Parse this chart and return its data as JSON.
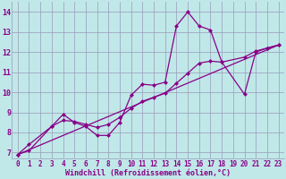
{
  "bg_color": "#c0e8e8",
  "line_color": "#880088",
  "grid_color": "#9999bb",
  "font_color": "#880088",
  "xlabel": "Windchill (Refroidissement éolien,°C)",
  "xlim": [
    -0.5,
    23.5
  ],
  "ylim": [
    6.7,
    14.5
  ],
  "xticks": [
    0,
    1,
    2,
    3,
    4,
    5,
    6,
    7,
    8,
    9,
    10,
    11,
    12,
    13,
    14,
    15,
    16,
    17,
    18,
    19,
    20,
    21,
    22,
    23
  ],
  "yticks": [
    7,
    8,
    9,
    10,
    11,
    12,
    13,
    14
  ],
  "line1_x": [
    0,
    1,
    3,
    4,
    5,
    6,
    7,
    8,
    9,
    10,
    11,
    12,
    13,
    14,
    15,
    16,
    17,
    18,
    20,
    21,
    22,
    23
  ],
  "line1_y": [
    6.9,
    7.1,
    8.3,
    8.9,
    8.5,
    8.3,
    7.85,
    7.85,
    8.5,
    9.85,
    10.4,
    10.35,
    10.5,
    13.3,
    14.0,
    13.3,
    13.1,
    11.5,
    9.9,
    12.0,
    12.2,
    12.35
  ],
  "line2_x": [
    0,
    1,
    3,
    4,
    5,
    6,
    7,
    8,
    9,
    10,
    11,
    12,
    13,
    14,
    15,
    16,
    17,
    18,
    20,
    21,
    22,
    23
  ],
  "line2_y": [
    6.9,
    7.4,
    8.3,
    8.6,
    8.55,
    8.4,
    8.25,
    8.4,
    8.75,
    9.2,
    9.55,
    9.75,
    9.95,
    10.45,
    10.95,
    11.45,
    11.55,
    11.5,
    11.75,
    12.05,
    12.2,
    12.35
  ],
  "line3_x": [
    0,
    23
  ],
  "line3_y": [
    6.9,
    12.35
  ],
  "markersize": 2.5,
  "linewidth": 0.9,
  "tick_fontsize": 5.5,
  "xlabel_fontsize": 6.0
}
